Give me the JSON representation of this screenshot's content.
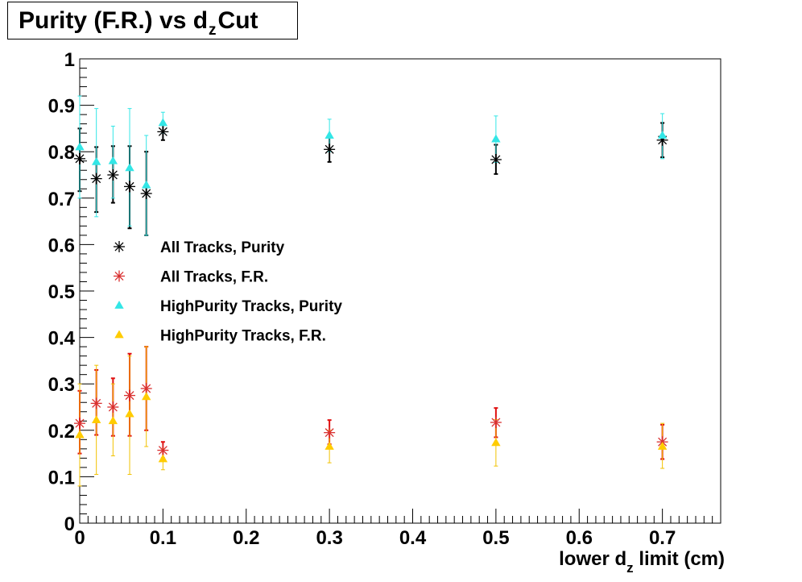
{
  "title": {
    "prefix": "Purity (F.R.) vs d",
    "sub": "z",
    "suffix": "Cut"
  },
  "chart_data": {
    "type": "scatter",
    "title": "Purity (F.R.) vs dz Cut",
    "xlabel": {
      "prefix": "lower d",
      "sub": "z",
      "suffix": " limit (cm)"
    },
    "ylabel": "",
    "xlim": [
      0,
      0.77
    ],
    "ylim": [
      0,
      1
    ],
    "grid": false,
    "legend_position": "center-left",
    "x_ticks": [
      "0",
      "0.1",
      "0.2",
      "0.3",
      "0.4",
      "0.5",
      "0.6",
      "0.7"
    ],
    "y_ticks": [
      "0",
      "0.1",
      "0.2",
      "0.3",
      "0.4",
      "0.5",
      "0.6",
      "0.7",
      "0.8",
      "0.9",
      "1"
    ],
    "series": [
      {
        "name": "All Tracks, Purity",
        "marker": "star",
        "color": "#000000",
        "errcolor": "#000000",
        "points": [
          {
            "x": 0.0,
            "y": 0.785,
            "lo": 0.715,
            "hi": 0.85
          },
          {
            "x": 0.02,
            "y": 0.742,
            "lo": 0.67,
            "hi": 0.81
          },
          {
            "x": 0.04,
            "y": 0.75,
            "lo": 0.69,
            "hi": 0.812
          },
          {
            "x": 0.06,
            "y": 0.725,
            "lo": 0.635,
            "hi": 0.812
          },
          {
            "x": 0.08,
            "y": 0.71,
            "lo": 0.62,
            "hi": 0.8
          },
          {
            "x": 0.1,
            "y": 0.843,
            "lo": 0.825,
            "hi": 0.86
          },
          {
            "x": 0.3,
            "y": 0.805,
            "lo": 0.778,
            "hi": 0.83
          },
          {
            "x": 0.5,
            "y": 0.783,
            "lo": 0.752,
            "hi": 0.815
          },
          {
            "x": 0.7,
            "y": 0.825,
            "lo": 0.788,
            "hi": 0.862
          }
        ]
      },
      {
        "name": "All Tracks, F.R.",
        "marker": "star",
        "color": "#d93030",
        "errcolor": "#e01010",
        "points": [
          {
            "x": 0.0,
            "y": 0.215,
            "lo": 0.15,
            "hi": 0.285
          },
          {
            "x": 0.02,
            "y": 0.258,
            "lo": 0.19,
            "hi": 0.33
          },
          {
            "x": 0.04,
            "y": 0.25,
            "lo": 0.188,
            "hi": 0.312
          },
          {
            "x": 0.06,
            "y": 0.275,
            "lo": 0.188,
            "hi": 0.365
          },
          {
            "x": 0.08,
            "y": 0.29,
            "lo": 0.2,
            "hi": 0.38
          },
          {
            "x": 0.1,
            "y": 0.157,
            "lo": 0.14,
            "hi": 0.175
          },
          {
            "x": 0.3,
            "y": 0.195,
            "lo": 0.17,
            "hi": 0.222
          },
          {
            "x": 0.5,
            "y": 0.217,
            "lo": 0.185,
            "hi": 0.248
          },
          {
            "x": 0.7,
            "y": 0.175,
            "lo": 0.138,
            "hi": 0.212
          }
        ]
      },
      {
        "name": "HighPurity Tracks, Purity",
        "marker": "triangle",
        "color": "#33e6e6",
        "errcolor": "#33e6e6",
        "points": [
          {
            "x": 0.0,
            "y": 0.81,
            "lo": 0.7,
            "hi": 0.92
          },
          {
            "x": 0.02,
            "y": 0.778,
            "lo": 0.66,
            "hi": 0.893
          },
          {
            "x": 0.04,
            "y": 0.78,
            "lo": 0.7,
            "hi": 0.855
          },
          {
            "x": 0.06,
            "y": 0.765,
            "lo": 0.64,
            "hi": 0.893
          },
          {
            "x": 0.08,
            "y": 0.728,
            "lo": 0.62,
            "hi": 0.835
          },
          {
            "x": 0.1,
            "y": 0.862,
            "lo": 0.84,
            "hi": 0.885
          },
          {
            "x": 0.3,
            "y": 0.835,
            "lo": 0.8,
            "hi": 0.87
          },
          {
            "x": 0.5,
            "y": 0.827,
            "lo": 0.777,
            "hi": 0.877
          },
          {
            "x": 0.7,
            "y": 0.835,
            "lo": 0.785,
            "hi": 0.882
          }
        ]
      },
      {
        "name": "HighPurity Tracks, F.R.",
        "marker": "triangle",
        "color": "#ffcc00",
        "errcolor": "#f2c200",
        "points": [
          {
            "x": 0.0,
            "y": 0.19,
            "lo": 0.08,
            "hi": 0.3
          },
          {
            "x": 0.02,
            "y": 0.222,
            "lo": 0.105,
            "hi": 0.34
          },
          {
            "x": 0.04,
            "y": 0.22,
            "lo": 0.145,
            "hi": 0.3
          },
          {
            "x": 0.06,
            "y": 0.235,
            "lo": 0.105,
            "hi": 0.36
          },
          {
            "x": 0.08,
            "y": 0.272,
            "lo": 0.165,
            "hi": 0.38
          },
          {
            "x": 0.1,
            "y": 0.138,
            "lo": 0.115,
            "hi": 0.16
          },
          {
            "x": 0.3,
            "y": 0.165,
            "lo": 0.13,
            "hi": 0.2
          },
          {
            "x": 0.5,
            "y": 0.173,
            "lo": 0.123,
            "hi": 0.223
          },
          {
            "x": 0.7,
            "y": 0.165,
            "lo": 0.118,
            "hi": 0.215
          }
        ]
      }
    ]
  }
}
